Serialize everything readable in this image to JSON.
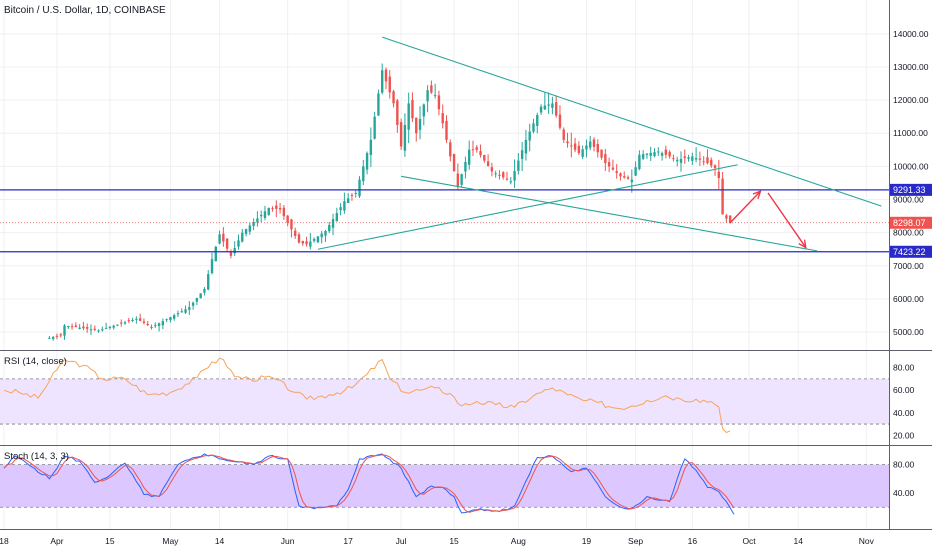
{
  "colors": {
    "up": "#26a69a",
    "down": "#ef5350",
    "trend": "#26a69a",
    "level": "#2929c9",
    "price_line": "#ef5350",
    "arrow": "#f23645",
    "rsi_line": "#f7a35c",
    "rsi_fill": "#efe4ff",
    "stoch_fill": "#dcc7ff",
    "stoch_k": "#2962ff",
    "stoch_d": "#ef5350",
    "grid": "#eef0f3",
    "axis": "#9598a1"
  },
  "chart_data": [
    {
      "type": "candlestick",
      "title": "Bitcoin / U.S. Dollar, 1D, COINBASE",
      "y_ticks": [
        5000,
        6000,
        7000,
        8000,
        9000,
        10000,
        11000,
        12000,
        13000,
        14000
      ],
      "y_tick_labels": [
        "5000.00",
        "6000.00",
        "7000.00",
        "8000.00",
        "9000.00",
        "10000.00",
        "11000.00",
        "12000.00",
        "13000.00",
        "14000.00"
      ],
      "ylim": [
        4580,
        14900
      ],
      "x_ticks": [
        "2019-03-18",
        "2019-04-01",
        "2019-04-15",
        "2019-05-01",
        "2019-05-14",
        "2019-06-01",
        "2019-06-17",
        "2019-07-01",
        "2019-07-15",
        "2019-08-01",
        "2019-08-19",
        "2019-09-01",
        "2019-09-16",
        "2019-10-01",
        "2019-10-14",
        "2019-11-01"
      ],
      "x_tick_labels": [
        "18",
        "Apr",
        "15",
        "May",
        "14",
        "Jun",
        "17",
        "Jul",
        "15",
        "Aug",
        "19",
        "Sep",
        "16",
        "Oct",
        "14",
        "Nov"
      ],
      "xlim": [
        "2019-03-18",
        "2019-11-07"
      ],
      "anchors": [
        [
          "2019-03-29",
          4800
        ],
        [
          "2019-04-02",
          4900
        ],
        [
          "2019-04-03",
          5200
        ],
        [
          "2019-04-12",
          5050
        ],
        [
          "2019-04-22",
          5400
        ],
        [
          "2019-04-26",
          5150
        ],
        [
          "2019-05-06",
          5750
        ],
        [
          "2019-05-10",
          6300
        ],
        [
          "2019-05-12",
          7200
        ],
        [
          "2019-05-14",
          7950
        ],
        [
          "2019-05-17",
          7300
        ],
        [
          "2019-05-20",
          8000
        ],
        [
          "2019-05-27",
          8750
        ],
        [
          "2019-05-30",
          8700
        ],
        [
          "2019-06-04",
          7700
        ],
        [
          "2019-06-06",
          7650
        ],
        [
          "2019-06-11",
          8050
        ],
        [
          "2019-06-16",
          8950
        ],
        [
          "2019-06-19",
          9200
        ],
        [
          "2019-06-23",
          10800
        ],
        [
          "2019-06-26",
          12900
        ],
        [
          "2019-06-29",
          11900
        ],
        [
          "2019-07-01",
          10600
        ],
        [
          "2019-07-03",
          11900
        ],
        [
          "2019-07-05",
          11000
        ],
        [
          "2019-07-08",
          12300
        ],
        [
          "2019-07-10",
          12150
        ],
        [
          "2019-07-12",
          11300
        ],
        [
          "2019-07-14",
          10300
        ],
        [
          "2019-07-16",
          9400
        ],
        [
          "2019-07-19",
          10500
        ],
        [
          "2019-07-21",
          10500
        ],
        [
          "2019-07-25",
          9850
        ],
        [
          "2019-07-30",
          9550
        ],
        [
          "2019-08-03",
          10800
        ],
        [
          "2019-08-07",
          11800
        ],
        [
          "2019-08-10",
          11900
        ],
        [
          "2019-08-13",
          10800
        ],
        [
          "2019-08-17",
          10400
        ],
        [
          "2019-08-20",
          10750
        ],
        [
          "2019-08-24",
          10100
        ],
        [
          "2019-08-28",
          9700
        ],
        [
          "2019-08-31",
          9600
        ],
        [
          "2019-09-02",
          10350
        ],
        [
          "2019-09-07",
          10450
        ],
        [
          "2019-09-12",
          10200
        ],
        [
          "2019-09-16",
          10300
        ],
        [
          "2019-09-20",
          10100
        ],
        [
          "2019-09-22",
          9950
        ],
        [
          "2019-09-23",
          9650
        ],
        [
          "2019-09-24",
          8550
        ],
        [
          "2019-09-26",
          8298
        ]
      ],
      "levels": [
        {
          "label": "9291.33",
          "value": 9291.33
        },
        {
          "label": "7423.22",
          "value": 7423.22
        }
      ],
      "last_price": {
        "label": "8298.07",
        "value": 8298.07
      },
      "trendlines": [
        {
          "from": [
            "2019-06-26",
            13900
          ],
          "to": [
            "2019-11-05",
            8800
          ]
        },
        {
          "from": [
            "2019-07-01",
            9700
          ],
          "to": [
            "2019-10-19",
            7450
          ]
        },
        {
          "from": [
            "2019-06-09",
            7500
          ],
          "to": [
            "2019-09-28",
            10050
          ]
        }
      ],
      "projection_arrows": [
        {
          "from": [
            "2019-09-26",
            8300
          ],
          "to": [
            "2019-10-04",
            9250
          ]
        },
        {
          "from": [
            "2019-10-06",
            9200
          ],
          "to": [
            "2019-10-16",
            7550
          ]
        }
      ]
    },
    {
      "type": "line",
      "title": "RSI (14, close)",
      "y_ticks": [
        20,
        40,
        60,
        80
      ],
      "y_tick_labels": [
        "20.00",
        "40.00",
        "60.00",
        "80.00"
      ],
      "ylim": [
        15,
        92
      ],
      "band": [
        30,
        70
      ],
      "anchors": [
        [
          "2019-03-18",
          60
        ],
        [
          "2019-03-22",
          58
        ],
        [
          "2019-03-27",
          53
        ],
        [
          "2019-04-01",
          78
        ],
        [
          "2019-04-03",
          87
        ],
        [
          "2019-04-08",
          82
        ],
        [
          "2019-04-13",
          70
        ],
        [
          "2019-04-19",
          70
        ],
        [
          "2019-04-25",
          56
        ],
        [
          "2019-05-01",
          58
        ],
        [
          "2019-05-08",
          71
        ],
        [
          "2019-05-12",
          85
        ],
        [
          "2019-05-15",
          87
        ],
        [
          "2019-05-18",
          72
        ],
        [
          "2019-05-22",
          70
        ],
        [
          "2019-05-28",
          71
        ],
        [
          "2019-06-03",
          58
        ],
        [
          "2019-06-06",
          52
        ],
        [
          "2019-06-12",
          56
        ],
        [
          "2019-06-18",
          62
        ],
        [
          "2019-06-22",
          74
        ],
        [
          "2019-06-26",
          87
        ],
        [
          "2019-06-28",
          70
        ],
        [
          "2019-07-02",
          58
        ],
        [
          "2019-07-06",
          60
        ],
        [
          "2019-07-10",
          62
        ],
        [
          "2019-07-14",
          57
        ],
        [
          "2019-07-17",
          46
        ],
        [
          "2019-07-21",
          50
        ],
        [
          "2019-07-26",
          47
        ],
        [
          "2019-07-31",
          45
        ],
        [
          "2019-08-05",
          55
        ],
        [
          "2019-08-10",
          62
        ],
        [
          "2019-08-14",
          56
        ],
        [
          "2019-08-18",
          51
        ],
        [
          "2019-08-22",
          49
        ],
        [
          "2019-08-27",
          44
        ],
        [
          "2019-08-31",
          46
        ],
        [
          "2019-09-04",
          51
        ],
        [
          "2019-09-09",
          55
        ],
        [
          "2019-09-13",
          52
        ],
        [
          "2019-09-17",
          52
        ],
        [
          "2019-09-21",
          50
        ],
        [
          "2019-09-23",
          45
        ],
        [
          "2019-09-24",
          26
        ],
        [
          "2019-09-26",
          24
        ]
      ]
    },
    {
      "type": "line",
      "title": "Stoch (14, 3, 3)",
      "y_ticks": [
        40,
        80
      ],
      "y_tick_labels": [
        "40.00",
        "80.00"
      ],
      "ylim": [
        -5,
        102
      ],
      "band": [
        20,
        80
      ],
      "anchors": [
        [
          "2019-03-18",
          75
        ],
        [
          "2019-03-21",
          92
        ],
        [
          "2019-03-26",
          75
        ],
        [
          "2019-03-30",
          60
        ],
        [
          "2019-04-03",
          92
        ],
        [
          "2019-04-07",
          85
        ],
        [
          "2019-04-11",
          55
        ],
        [
          "2019-04-15",
          65
        ],
        [
          "2019-04-19",
          82
        ],
        [
          "2019-04-24",
          38
        ],
        [
          "2019-04-28",
          35
        ],
        [
          "2019-05-03",
          80
        ],
        [
          "2019-05-10",
          95
        ],
        [
          "2019-05-17",
          85
        ],
        [
          "2019-05-23",
          80
        ],
        [
          "2019-05-27",
          92
        ],
        [
          "2019-06-01",
          88
        ],
        [
          "2019-06-04",
          22
        ],
        [
          "2019-06-08",
          18
        ],
        [
          "2019-06-14",
          22
        ],
        [
          "2019-06-17",
          45
        ],
        [
          "2019-06-20",
          88
        ],
        [
          "2019-06-26",
          95
        ],
        [
          "2019-07-01",
          75
        ],
        [
          "2019-07-05",
          35
        ],
        [
          "2019-07-09",
          50
        ],
        [
          "2019-07-12",
          48
        ],
        [
          "2019-07-15",
          35
        ],
        [
          "2019-07-17",
          12
        ],
        [
          "2019-07-22",
          18
        ],
        [
          "2019-07-27",
          14
        ],
        [
          "2019-07-31",
          22
        ],
        [
          "2019-08-06",
          90
        ],
        [
          "2019-08-10",
          92
        ],
        [
          "2019-08-15",
          70
        ],
        [
          "2019-08-19",
          75
        ],
        [
          "2019-08-24",
          35
        ],
        [
          "2019-08-28",
          20
        ],
        [
          "2019-08-31",
          18
        ],
        [
          "2019-09-04",
          35
        ],
        [
          "2019-09-07",
          30
        ],
        [
          "2019-09-10",
          28
        ],
        [
          "2019-09-12",
          60
        ],
        [
          "2019-09-14",
          88
        ],
        [
          "2019-09-17",
          72
        ],
        [
          "2019-09-20",
          48
        ],
        [
          "2019-09-23",
          42
        ],
        [
          "2019-09-25",
          28
        ],
        [
          "2019-09-27",
          10
        ]
      ]
    }
  ]
}
